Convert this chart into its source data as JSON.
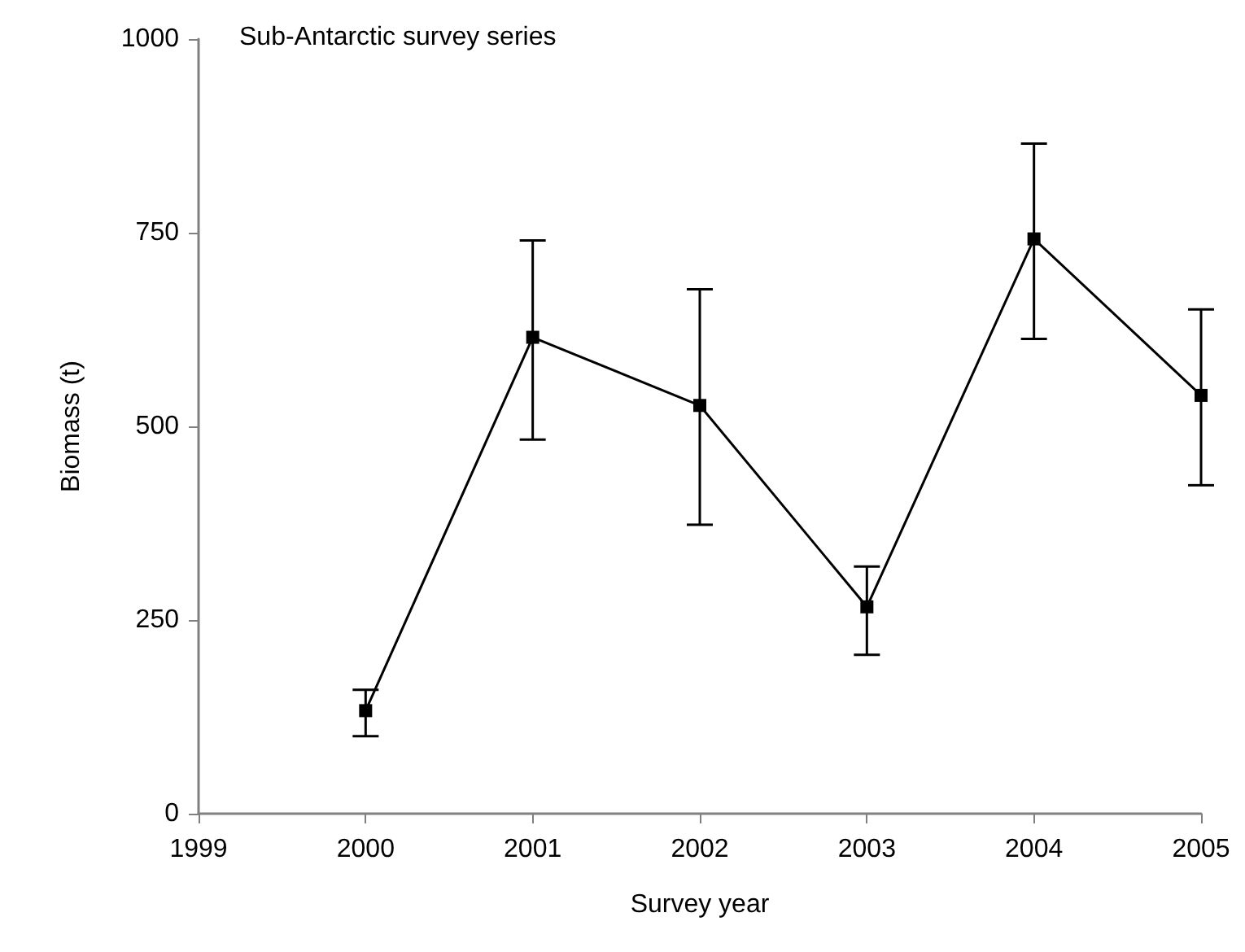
{
  "chart_data": {
    "type": "line",
    "title": "Sub-Antarctic survey series",
    "xlabel": "Survey year",
    "ylabel": "Biomass (t)",
    "x": [
      2000,
      2001,
      2002,
      2003,
      2004,
      2005
    ],
    "values": [
      133,
      615,
      527,
      267,
      742,
      540
    ],
    "errors": [
      [
        100,
        160
      ],
      [
        483,
        740
      ],
      [
        373,
        677
      ],
      [
        205,
        319
      ],
      [
        613,
        865
      ],
      [
        424,
        651
      ]
    ],
    "color": "#000000",
    "marker": "square",
    "line_style": "solid",
    "xlim": [
      1999,
      2005
    ],
    "xticks": [
      1999,
      2000,
      2001,
      2002,
      2003,
      2004,
      2005
    ],
    "ylim": [
      0,
      1000
    ],
    "yticks": [
      0,
      250,
      500,
      750,
      1000
    ],
    "grid": false
  }
}
